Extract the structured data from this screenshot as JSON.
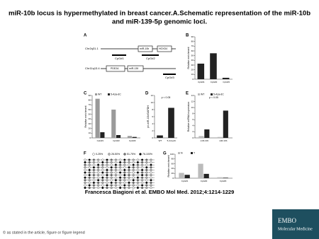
{
  "header": {
    "title": [
      "miR-10b locus is hypermethylated in breast cancer.A.Schematic representation of the miR-10b",
      "and miR-139-5p genomic loci."
    ]
  },
  "figure": {
    "panel_a": {
      "letter": "A",
      "locus1": {
        "chr": "Chr2q31.1",
        "genes": [
          "miR-10b",
          "HOXD4"
        ],
        "cpg": [
          "CpG#1",
          "CpG#2"
        ]
      },
      "locus2": {
        "chr": "Chr11q13.4",
        "genes": [
          "PDE2A",
          "miR-139"
        ],
        "cpg": [
          "CpG#3"
        ]
      }
    },
    "panel_f": {
      "letter": "F",
      "legend": [
        "0-25%",
        "26-50%",
        "51-75%",
        "76-100%"
      ]
    },
    "charts": [
      {
        "letter": "B",
        "ylabel": "Relative enrichment",
        "ylim": [
          0,
          90
        ],
        "yticks": [
          0,
          10,
          20,
          30,
          40,
          50,
          60,
          70,
          80,
          90
        ],
        "categories": [
          "CpG#1",
          "CpG#2",
          "CpG#3"
        ],
        "series": [
          {
            "name": "MBD",
            "color": "#222222",
            "values": [
              33,
              55,
              3
            ]
          }
        ],
        "show_legend": false
      },
      {
        "letter": "C",
        "ylabel": "Relative enrichment",
        "ylim": [
          0,
          90
        ],
        "yticks": [
          0,
          10,
          20,
          30,
          40,
          50,
          60,
          70,
          80,
          90
        ],
        "categories": [
          "CpG#1",
          "CpG#2",
          "CpG#3"
        ],
        "series": [
          {
            "name": "WT",
            "color": "#9a9a9a",
            "values": [
              83,
              60,
              4
            ]
          },
          {
            "name": "5-Aza-dC",
            "color": "#222222",
            "values": [
              12,
              6,
              2
            ]
          }
        ],
        "show_legend": true
      },
      {
        "letter": "D",
        "ylabel": "pri-miR-10b/GAPDH",
        "annotation": "p < 0.05",
        "ylim": [
          0,
          12
        ],
        "yticks": [
          0,
          2,
          4,
          6,
          8,
          10,
          12
        ],
        "categories": [
          "WT",
          "5-Aza-dC"
        ],
        "series": [
          {
            "name": "pri-miR-10b",
            "color": "#222222",
            "values": [
              0.7,
              8.5
            ]
          }
        ],
        "show_legend": false
      },
      {
        "letter": "E",
        "ylabel": "Relative miRNA expression",
        "annotation": "p < 0.05",
        "ylim": [
          0,
          14
        ],
        "yticks": [
          0,
          2,
          4,
          6,
          8,
          10,
          12,
          14
        ],
        "categories": [
          "miR-139",
          "miR-10b"
        ],
        "series": [
          {
            "name": "WT",
            "color": "#bbbbbb",
            "values": [
              0.6,
              0.3
            ]
          },
          {
            "name": "5-Aza-dC",
            "color": "#222222",
            "values": [
              2.8,
              9
            ]
          }
        ],
        "show_legend": true
      },
      {
        "letter": "G",
        "ylabel": "Relative enrichment",
        "ylim": [
          0,
          100
        ],
        "yticks": [
          0,
          20,
          40,
          60,
          80,
          100
        ],
        "categories": [
          "CpG#1",
          "CpG#2",
          "CpG#3"
        ],
        "series": [
          {
            "name": "N",
            "color": "#bbbbbb",
            "values": [
              22,
              60,
              4
            ]
          },
          {
            "name": "T",
            "color": "#222222",
            "values": [
              14,
              18,
              2
            ]
          }
        ],
        "show_legend": true
      }
    ]
  },
  "citation": "Francesca Biagioni et al. EMBO Mol Med. 2012;4:1214-1229",
  "footer": "© as stated in the article, figure or figure legend",
  "logo": [
    "EMBO",
    "Molecular Medicine"
  ]
}
